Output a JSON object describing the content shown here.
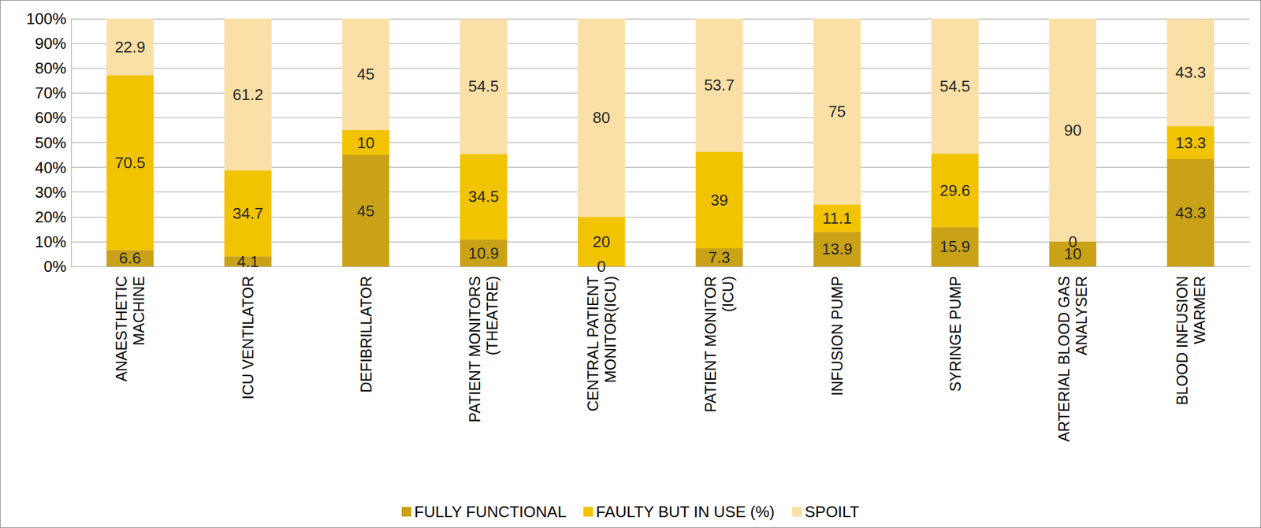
{
  "chart_data": {
    "type": "bar",
    "stacked": true,
    "data_labels": true,
    "grid": true,
    "legend": "bottom",
    "categories": [
      "ANAESTHETIC MACHINE",
      "ICU VENTILATOR",
      "DEFIBRILLATOR",
      "PATIENT MONITORS (THEATRE)",
      "CENTRAL PATIENT MONITOR(ICU)",
      "PATIENT MONITOR (ICU)",
      "INFUSION PUMP",
      "SYRINGE PUMP",
      "ARTERIAL BLOOD GAS ANALYSER",
      "BLOOD INFUSION WARMER"
    ],
    "series": [
      {
        "name": "FULLY FUNCTIONAL",
        "color": "#c9a217",
        "values": [
          6.6,
          4.1,
          45,
          10.9,
          0,
          7.3,
          13.9,
          15.9,
          10,
          43.3
        ]
      },
      {
        "name": "FAULTY BUT IN USE (%)",
        "color": "#f2c300",
        "values": [
          70.5,
          34.7,
          10,
          34.5,
          20,
          39,
          11.1,
          29.6,
          0,
          13.3
        ]
      },
      {
        "name": "SPOILT",
        "color": "#fadfa6",
        "values": [
          22.9,
          61.2,
          45,
          54.5,
          80,
          53.7,
          75,
          54.5,
          90,
          43.3
        ]
      }
    ],
    "ylim": [
      0,
      100
    ],
    "yticks": [
      {
        "value": 0,
        "label": "0%"
      },
      {
        "value": 10,
        "label": "10%"
      },
      {
        "value": 20,
        "label": "20%"
      },
      {
        "value": 30,
        "label": "30%"
      },
      {
        "value": 40,
        "label": "40%"
      },
      {
        "value": 50,
        "label": "50%"
      },
      {
        "value": 60,
        "label": "60%"
      },
      {
        "value": 70,
        "label": "70%"
      },
      {
        "value": 80,
        "label": "80%"
      },
      {
        "value": 90,
        "label": "90%"
      },
      {
        "value": 100,
        "label": "100%"
      }
    ]
  }
}
